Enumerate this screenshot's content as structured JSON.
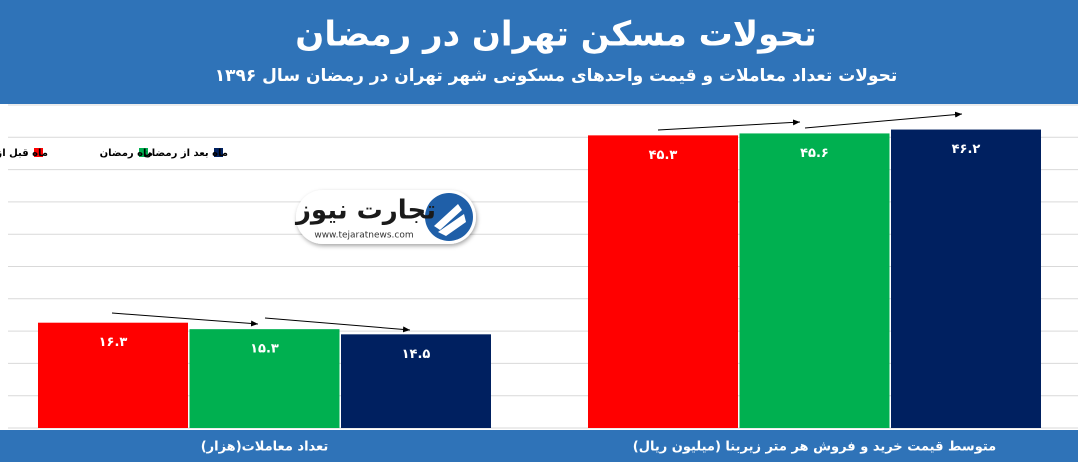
{
  "chart_data": {
    "type": "bar",
    "title": "تحولات مسکن تهران در رمضان",
    "subtitle": "تحولات تعداد معاملات و قیمت واحدهای مسکونی شهر تهران در رمضان سال ۱۳۹۶",
    "categories": [
      "تعداد معاملات(هزار)",
      "متوسط قیمت خرید و فروش هر متر زیربنا (میلیون ریال)"
    ],
    "series": [
      {
        "name": "ماه قبل از رمضان",
        "color": "#ff0000",
        "values": [
          16.3,
          45.3
        ],
        "value_labels": [
          "۱۶.۳",
          "۴۵.۳"
        ]
      },
      {
        "name": "ماه رمضان",
        "color": "#00b050",
        "values": [
          15.3,
          45.6
        ],
        "value_labels": [
          "۱۵.۳",
          "۴۵.۶"
        ]
      },
      {
        "name": "ماه بعد از رمضان",
        "color": "#002060",
        "values": [
          14.5,
          46.2
        ],
        "value_labels": [
          "۱۴.۵",
          "۴۶.۲"
        ]
      }
    ],
    "ylim": [
      0,
      50
    ],
    "yticks": [
      0,
      5,
      10,
      15,
      20,
      25,
      30,
      35,
      40,
      45,
      50
    ],
    "grid": true,
    "legend": "top-left",
    "watermark": {
      "name": "تجارت نیوز",
      "url": "www.tejaratnews.com"
    }
  }
}
